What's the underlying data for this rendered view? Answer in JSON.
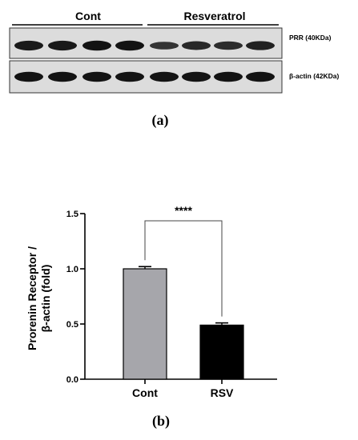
{
  "figure": {
    "panel_a": {
      "label": "(a)",
      "groups": [
        "Cont",
        "Resveratrol"
      ],
      "blots": [
        {
          "label": "PRR (40KDa)",
          "lanes": [
            0.85,
            0.85,
            0.9,
            0.9,
            0.55,
            0.7,
            0.65,
            0.75
          ]
        },
        {
          "label": "β-actin (42KDa)",
          "lanes": [
            0.9,
            0.9,
            0.9,
            0.9,
            0.9,
            0.9,
            0.9,
            0.9
          ]
        }
      ]
    },
    "panel_b": {
      "label": "(b)"
    }
  },
  "chart_data": {
    "type": "bar",
    "categories": [
      "Cont",
      "RSV"
    ],
    "values": [
      1.0,
      0.49
    ],
    "errors": [
      0.02,
      0.02
    ],
    "colors": [
      "#a6a6ab",
      "#000000"
    ],
    "ylabel_lines": [
      "Prorenin Receptor /",
      "β-actin (fold)"
    ],
    "ylim": [
      0.0,
      1.5
    ],
    "yticks": [
      "0.0",
      "0.5",
      "1.0",
      "1.5"
    ],
    "significance": "****",
    "grid": false
  }
}
